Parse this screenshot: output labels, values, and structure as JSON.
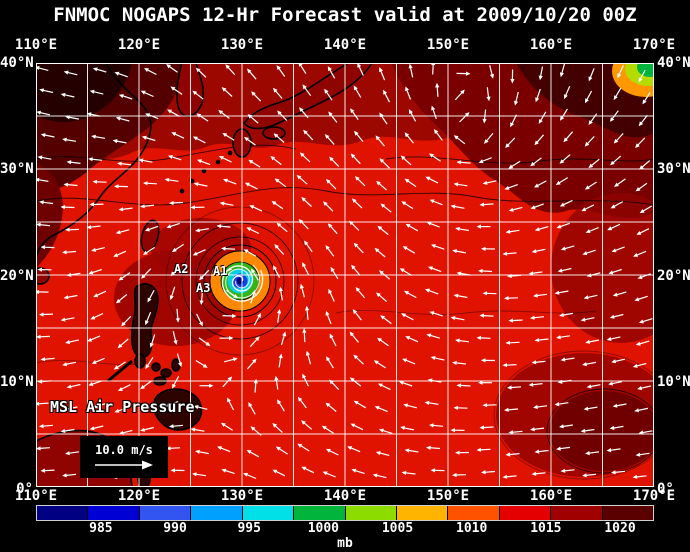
{
  "title": "FNMOC NOGAPS 12-Hr Forecast valid at 2009/10/20 00Z",
  "axes": {
    "lon_ticks": [
      "110°E",
      "120°E",
      "130°E",
      "140°E",
      "150°E",
      "160°E",
      "170°E"
    ],
    "lat_ticks": [
      "40°N",
      "30°N",
      "20°N",
      "10°N",
      "0°"
    ]
  },
  "map": {
    "field_label": "MSL Air Pressure",
    "wind_scale_label": "10.0 m/s",
    "storm_markers": {
      "a1": "A1",
      "a2": "A2",
      "a3": "A3"
    }
  },
  "colorbar": {
    "unit": "mb",
    "tick_values": [
      "985",
      "990",
      "995",
      "1000",
      "1005",
      "1010",
      "1015",
      "1020"
    ],
    "colors": [
      "#000082",
      "#0000d4",
      "#3254f0",
      "#00a0ff",
      "#00e0e6",
      "#00b43c",
      "#8cdc00",
      "#ffb400",
      "#ff5200",
      "#e40000",
      "#a00000",
      "#5a0000"
    ]
  }
}
